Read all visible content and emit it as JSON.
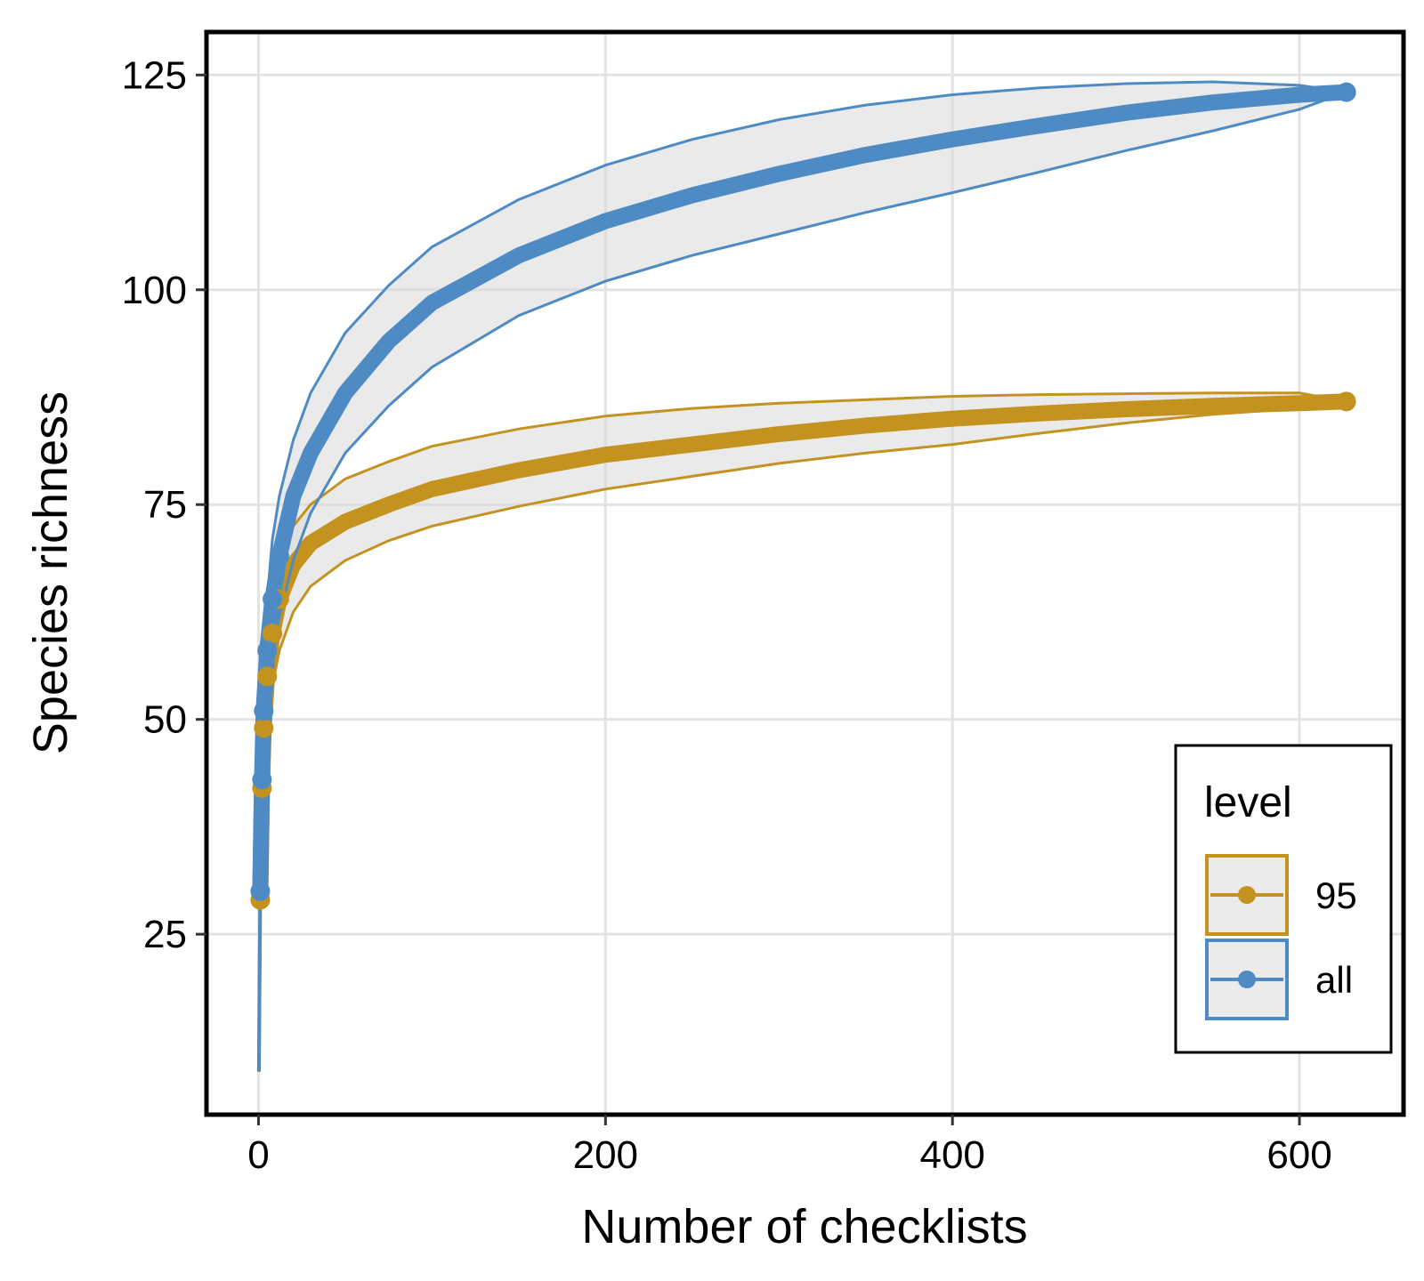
{
  "chart_data": {
    "type": "line",
    "title": "",
    "xlabel": "Number of checklists",
    "ylabel": "Species richness",
    "xlim": [
      -30,
      660
    ],
    "ylim": [
      4,
      130
    ],
    "xticks": [
      0,
      200,
      400,
      600
    ],
    "yticks": [
      25,
      50,
      75,
      100,
      125
    ],
    "grid": true,
    "legend": {
      "title": "level",
      "position": "bottom-right"
    },
    "series": [
      {
        "name": "95",
        "color": "#C4921F",
        "x": [
          1,
          2,
          3,
          5,
          8,
          12,
          20,
          30,
          50,
          75,
          100,
          150,
          200,
          250,
          300,
          350,
          400,
          450,
          500,
          550,
          600,
          627
        ],
        "y": [
          29,
          42,
          49,
          55,
          60,
          64,
          68,
          70.5,
          73,
          75,
          76.8,
          79,
          80.8,
          82,
          83.2,
          84.2,
          85,
          85.6,
          86.1,
          86.5,
          86.8,
          87
        ],
        "lower": [
          29,
          40,
          45,
          50,
          54,
          58,
          62.5,
          65.5,
          68.5,
          70.8,
          72.5,
          74.8,
          76.8,
          78.3,
          79.8,
          81,
          82,
          83.3,
          84.5,
          85.5,
          86.2,
          87
        ],
        "upper": [
          29,
          44,
          53,
          60,
          65,
          68.5,
          72.5,
          75,
          78,
          80,
          81.8,
          83.8,
          85.3,
          86.2,
          86.8,
          87.2,
          87.6,
          87.8,
          87.9,
          88,
          88,
          87
        ]
      },
      {
        "name": "all",
        "color": "#4E8BC4",
        "x": [
          1,
          2,
          3,
          5,
          8,
          12,
          20,
          30,
          50,
          75,
          100,
          150,
          200,
          250,
          300,
          350,
          400,
          450,
          500,
          550,
          600,
          627
        ],
        "y": [
          30,
          43,
          51,
          58,
          64,
          69,
          76,
          81,
          88,
          94,
          98.5,
          104,
          108,
          111,
          113.5,
          115.7,
          117.5,
          119.1,
          120.6,
          121.8,
          122.7,
          123
        ],
        "lower": [
          30,
          40,
          46,
          52,
          57,
          62,
          68.5,
          74,
          81,
          86.5,
          91,
          97,
          101,
          104,
          106.5,
          109,
          111.3,
          113.7,
          116.2,
          118.5,
          121,
          123
        ],
        "upper": [
          30,
          46,
          56,
          64,
          71,
          76,
          82.5,
          88,
          95,
          100.5,
          105,
          110.5,
          114.5,
          117.5,
          119.8,
          121.5,
          122.7,
          123.5,
          124,
          124.2,
          123.8,
          123
        ]
      }
    ]
  }
}
